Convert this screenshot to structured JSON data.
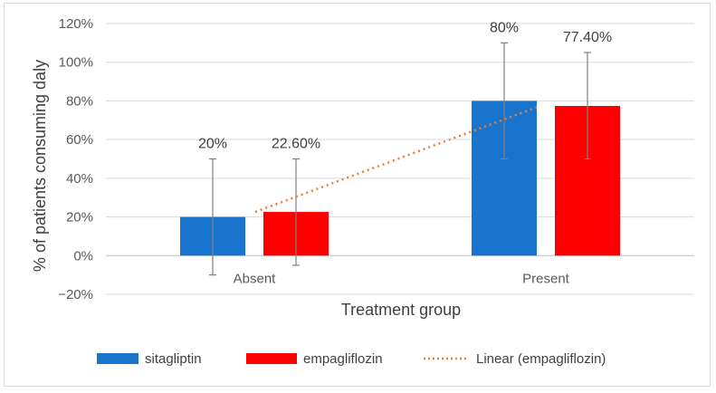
{
  "chart_data": {
    "type": "bar",
    "xlabel": "Treatment group",
    "ylabel": "% of patients consuming daly",
    "ylim": [
      -0.2,
      1.2
    ],
    "yticks": [
      1.2,
      1.0,
      0.8,
      0.6,
      0.4,
      0.2,
      0.0,
      -0.2
    ],
    "ytick_labels": [
      "120%",
      "100%",
      "80%",
      "60%",
      "40%",
      "20%",
      "0%",
      "−20%"
    ],
    "categories": [
      "Absent",
      "Present"
    ],
    "series": [
      {
        "name": "sitagliptin",
        "color": "#1874cd",
        "values": [
          0.2,
          0.8
        ],
        "labels": [
          "20%",
          "80%"
        ],
        "err_low": [
          -0.1,
          0.5
        ],
        "err_high": [
          0.5,
          1.1
        ]
      },
      {
        "name": "empagliflozin",
        "color": "#ff0000",
        "values": [
          0.226,
          0.774
        ],
        "labels": [
          "22.60%",
          "77.40%"
        ],
        "err_low": [
          -0.05,
          0.5
        ],
        "err_high": [
          0.5,
          1.05
        ]
      }
    ],
    "trendline": {
      "name": "Linear (empagliflozin)",
      "color": "#ed7d31",
      "values": [
        0.226,
        0.774
      ]
    },
    "legend_position": "bottom",
    "grid": true
  }
}
